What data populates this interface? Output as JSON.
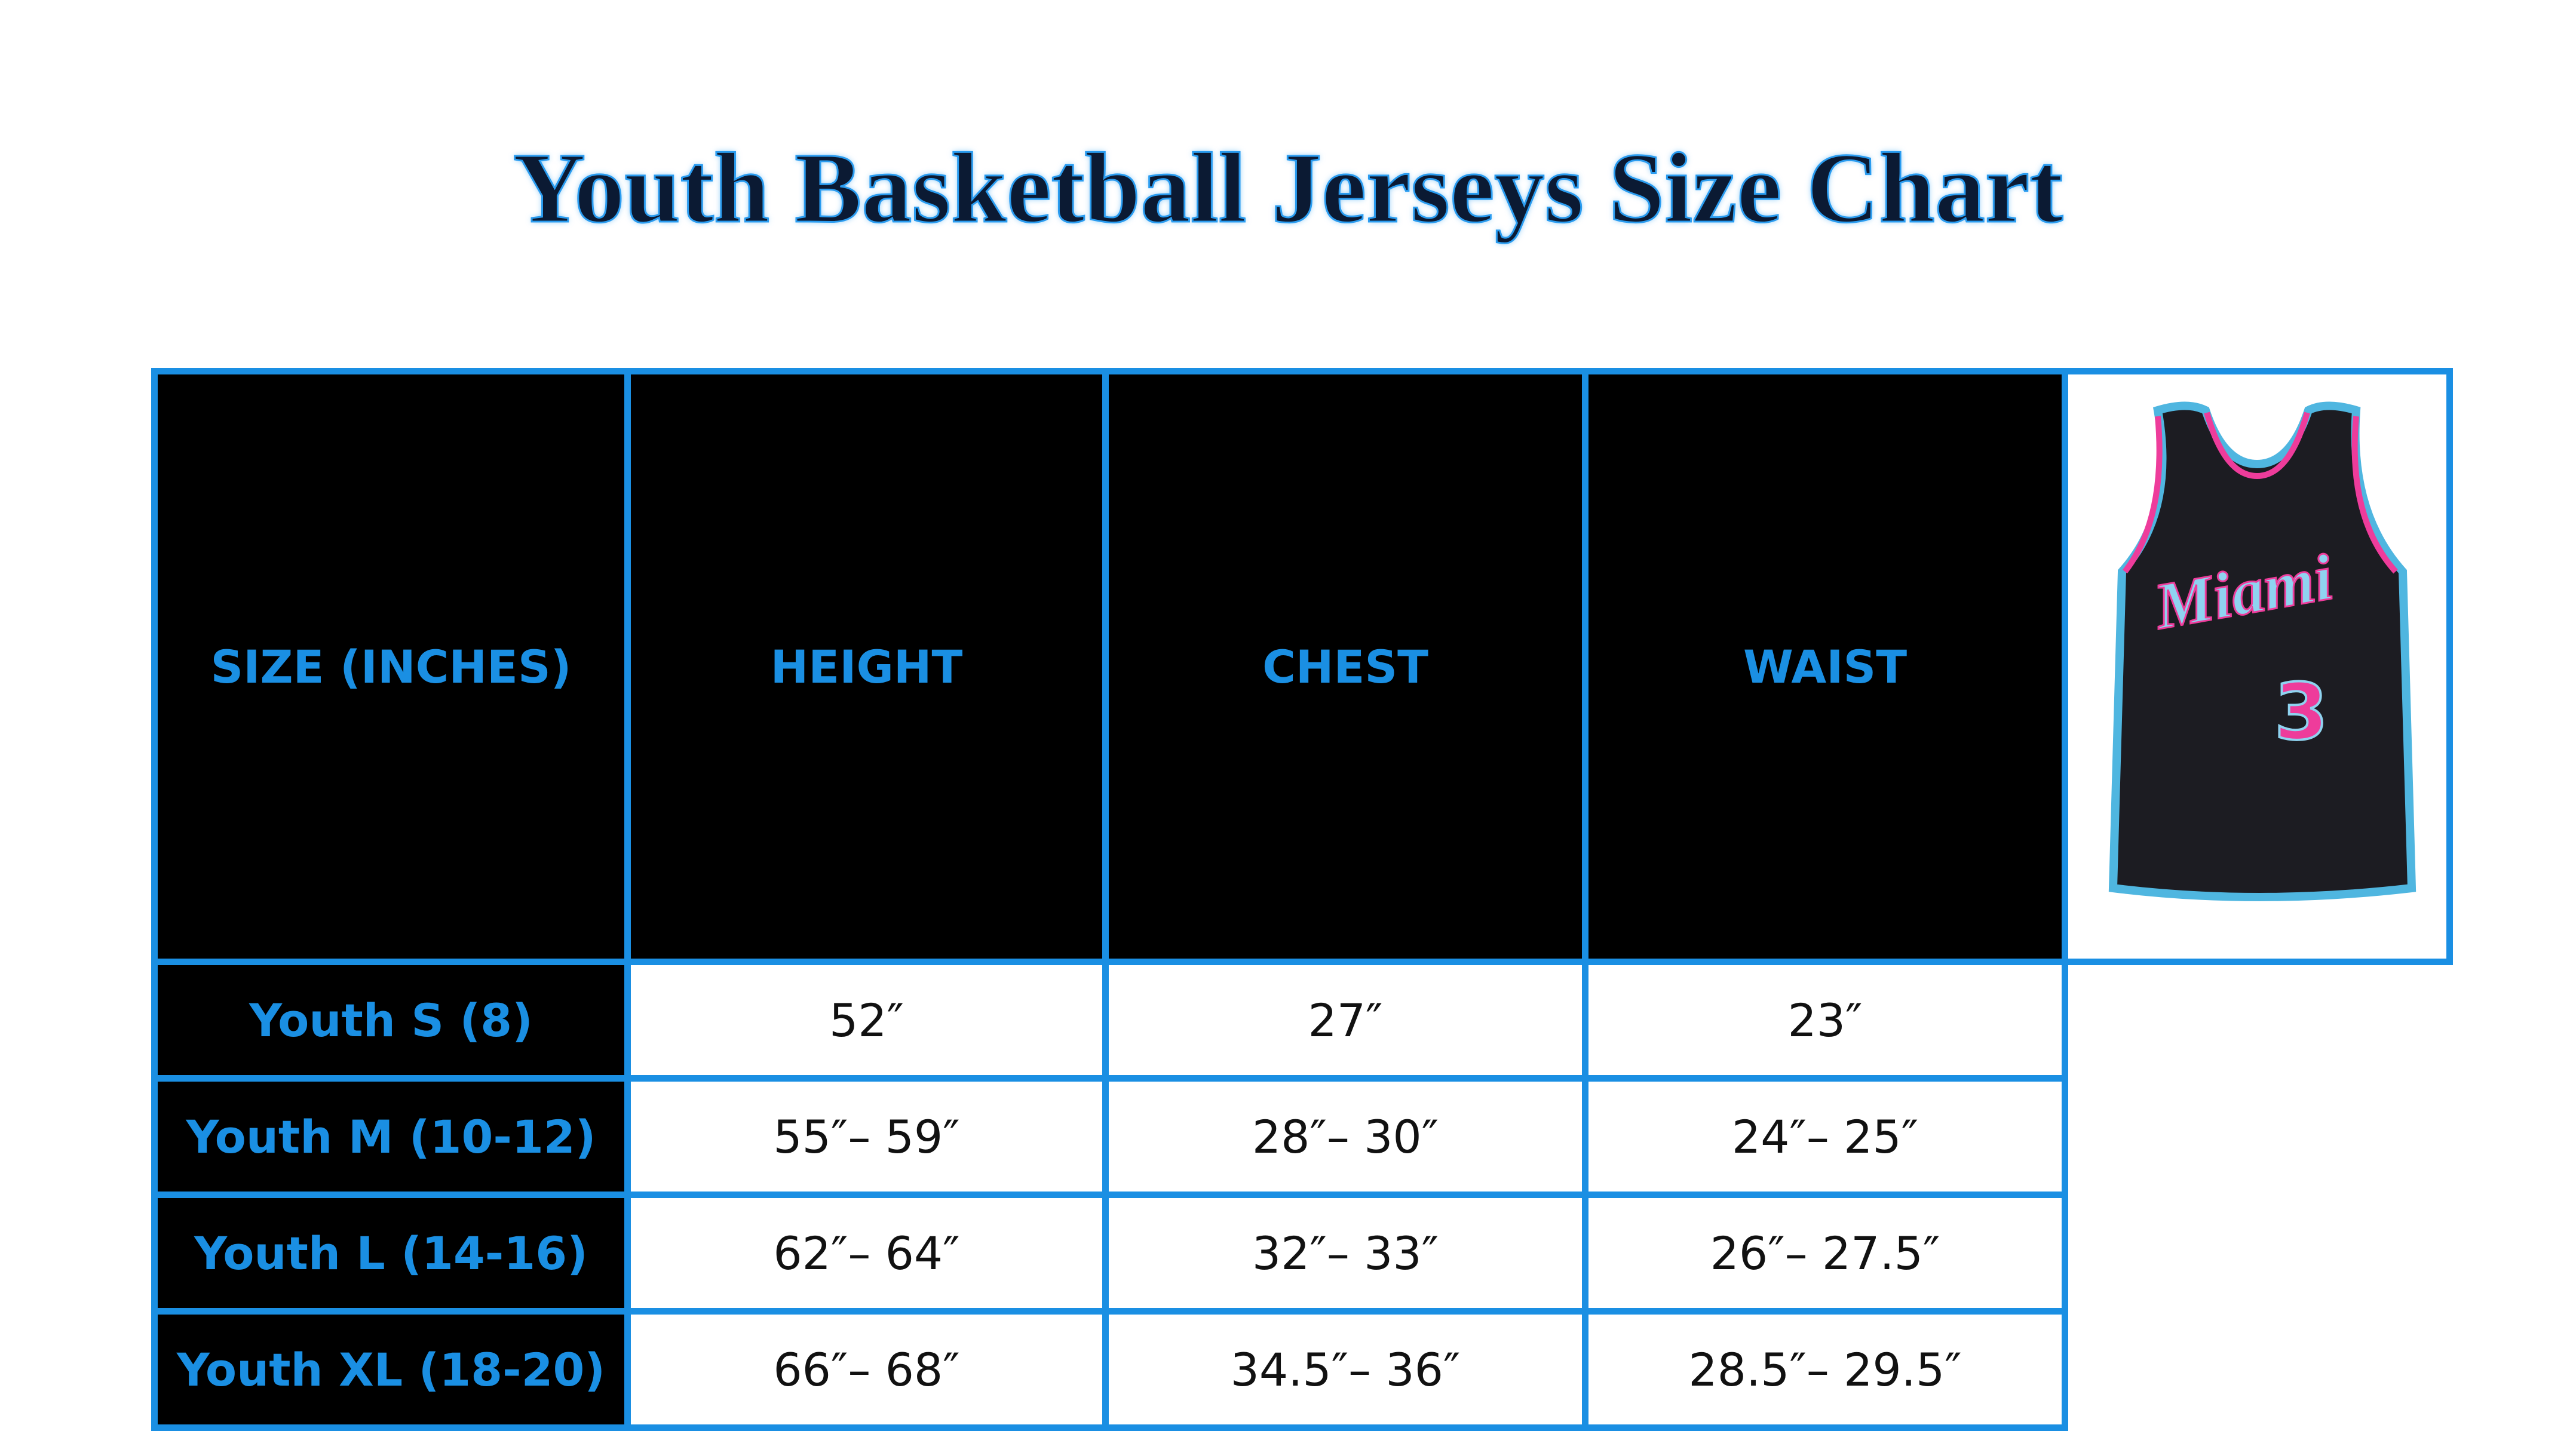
{
  "header": {
    "title": "Youth Basketball Jerseys Size Chart"
  },
  "table": {
    "columns": [
      "SIZE (INCHES)",
      "HEIGHT",
      "CHEST",
      "WAIST"
    ],
    "rows": [
      [
        "Youth S (8)",
        "52″",
        "27″",
        "23″"
      ],
      [
        "Youth M (10-12)",
        "55″– 59″",
        "28″– 30″",
        "24″– 25″"
      ],
      [
        "Youth L (14-16)",
        "62″– 64″",
        "32″– 33″",
        "26″– 27.5″"
      ],
      [
        "Youth XL (18-20)",
        "66″– 68″",
        "34.5″– 36″",
        "28.5″– 29.5″"
      ]
    ]
  },
  "jersey": {
    "wordmark": "Miami",
    "number": "3"
  }
}
